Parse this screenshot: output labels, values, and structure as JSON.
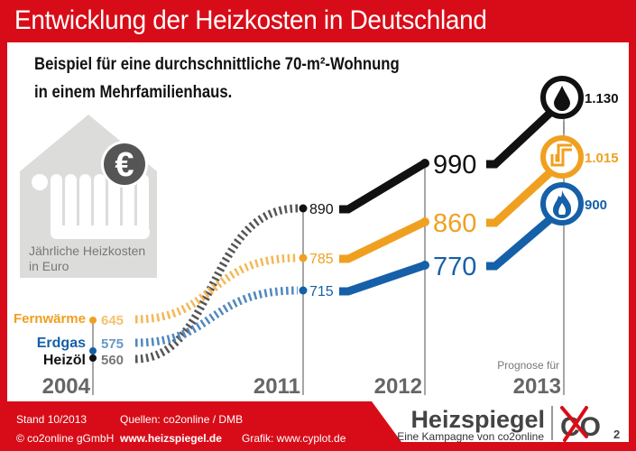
{
  "header": {
    "title": "Entwicklung der Heizkosten in Deutschland",
    "subtitle_line1": "Beispiel für eine durchschnittliche 70-m²-Wohnung",
    "subtitle_line2": "in einem Mehrfamilienhaus."
  },
  "house_icon": {
    "caption_line1": "Jährliche Heizkosten",
    "caption_line2": "in Euro",
    "symbol": "€"
  },
  "colors": {
    "brand_red": "#d80c18",
    "heizoel": "#111111",
    "fernwaerme": "#f0a020",
    "erdgas": "#1560a8",
    "axis_gray": "#777777",
    "house_gray": "#dcdcda",
    "euro_badge": "#555555"
  },
  "chart_data": {
    "type": "line",
    "title": "Entwicklung der Heizkosten in Deutschland",
    "xlabel": "",
    "ylabel": "Jährliche Heizkosten in Euro",
    "categories": [
      "2004",
      "2011",
      "2012",
      "2013"
    ],
    "category_notes": {
      "2013": "Prognose für"
    },
    "series": [
      {
        "name": "Heizöl",
        "key": "heizoel",
        "icon": "oil-drop-icon",
        "values": [
          560,
          890,
          990,
          1130
        ],
        "labels": [
          "560",
          "890",
          "990",
          "1.130"
        ]
      },
      {
        "name": "Fernwärme",
        "key": "fernwaerme",
        "icon": "district-heating-pipe-icon",
        "values": [
          645,
          785,
          860,
          1015
        ],
        "labels": [
          "645",
          "785",
          "860",
          "1.015"
        ]
      },
      {
        "name": "Erdgas",
        "key": "erdgas",
        "icon": "gas-flame-icon",
        "values": [
          575,
          715,
          770,
          900
        ],
        "labels": [
          "575",
          "715",
          "770",
          "900"
        ]
      }
    ],
    "segment_style": {
      "2004-2011": "dashed",
      "2011-2013": "solid"
    },
    "ylim": [
      500,
      1150
    ],
    "grid": false,
    "legend": "left"
  },
  "footer": {
    "stand": "Stand 10/2013",
    "copyright": "© co2online gGmbH",
    "sources": "Quellen: co2online / DMB",
    "website": "www.heizspiegel.de",
    "graphic": "Grafik: www.cyplot.de",
    "logo_name": "Heizspiegel",
    "logo_tagline": "Eine Kampagne von co2online",
    "co2_mark": "CO",
    "co2_sub": "2"
  }
}
